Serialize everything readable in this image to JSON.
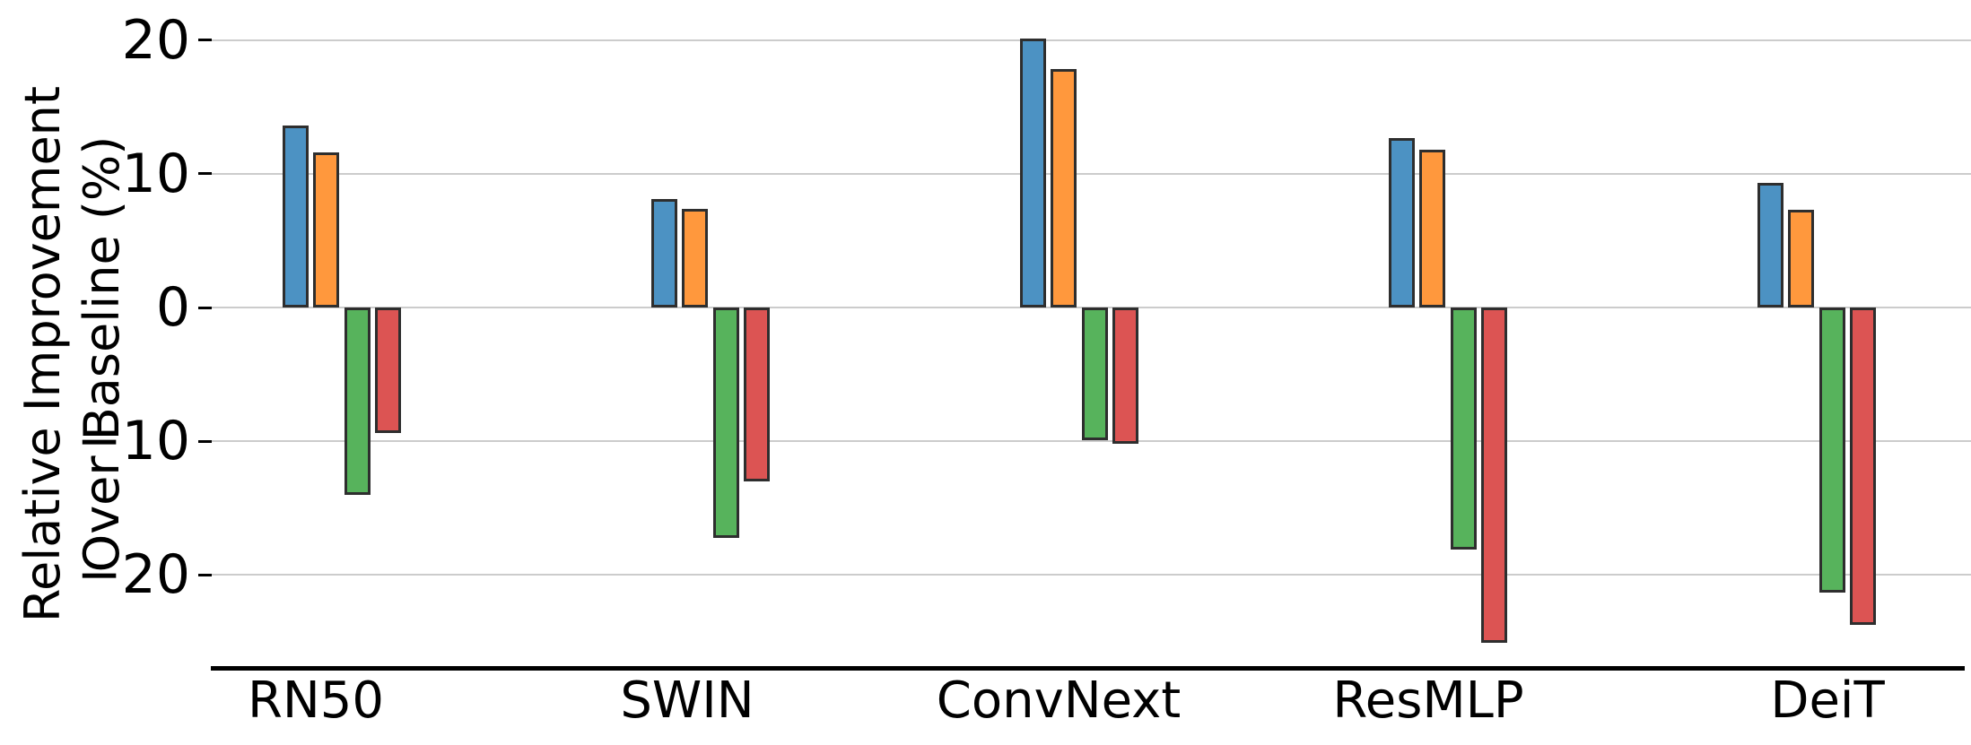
{
  "chart_data": {
    "type": "bar",
    "title": "",
    "ylabel": "Relative Improvement Over Baseline (%)",
    "ylabel_lines": [
      "Relative Improvement",
      "Over Baseline (%)"
    ],
    "xlabel": "",
    "categories": [
      "RN50",
      "SWIN",
      "ConvNext",
      "ResMLP",
      "DeiT"
    ],
    "series": [
      {
        "name": "blue",
        "color": "#4C92C3",
        "values": [
          13.6,
          8.1,
          20.1,
          12.7,
          9.3
        ]
      },
      {
        "name": "orange",
        "color": "#FF983D",
        "values": [
          11.6,
          7.4,
          17.8,
          11.8,
          7.3
        ]
      },
      {
        "name": "green",
        "color": "#57B35C",
        "values": [
          -14.0,
          -17.2,
          -9.9,
          -18.1,
          -21.3
        ]
      },
      {
        "name": "red",
        "color": "#DC5453",
        "values": [
          -9.4,
          -13.0,
          -10.2,
          -25.1,
          -23.7
        ]
      }
    ],
    "yticks": [
      20,
      10,
      0,
      -10,
      -20
    ],
    "ylim": [
      -27,
      23
    ],
    "grid": true,
    "legend": "none",
    "bar_edge_color": "#2E2E2E",
    "gridline_color": "#CCCCCC",
    "axis_line_color": "#000000",
    "background": "#FFFFFF"
  }
}
